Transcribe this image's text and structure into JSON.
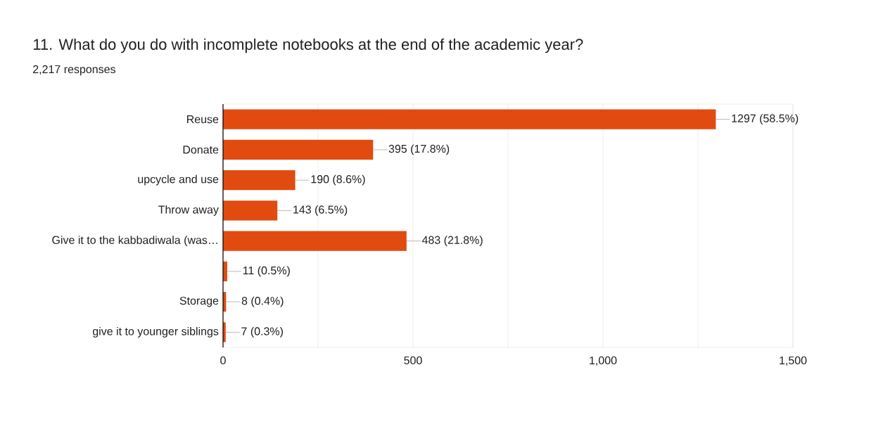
{
  "chart_data": {
    "type": "bar",
    "orientation": "horizontal",
    "title": "11. What do you do with incomplete notebooks at the end of the academic year?",
    "subtitle": "2,217 responses",
    "categories": [
      "Reuse",
      "Donate",
      "upcycle and use",
      "Throw away",
      "Give it to the kabbadiwala (was…",
      null,
      "Storage",
      "give it to younger siblings"
    ],
    "values": [
      1297,
      395,
      190,
      143,
      483,
      11,
      8,
      7
    ],
    "value_labels": [
      "1297 (58.5%)",
      "395 (17.8%)",
      "190 (8.6%)",
      "143 (6.5%)",
      "483 (21.8%)",
      "11 (0.5%)",
      "8 (0.4%)",
      "7 (0.3%)"
    ],
    "color": "#e14b10",
    "xlim": [
      0,
      1500
    ],
    "xticks": [
      0,
      {
        "value": 250,
        "label": null
      },
      500,
      {
        "value": 750,
        "label": null
      },
      {
        "value": 1000,
        "label": "1,000"
      },
      {
        "value": 1250,
        "label": null
      },
      {
        "value": 1500,
        "label": "1,500"
      }
    ],
    "grid": "x"
  }
}
